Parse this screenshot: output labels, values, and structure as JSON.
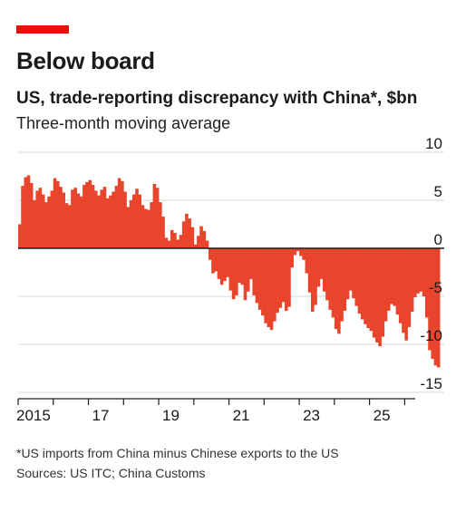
{
  "header": {
    "title": "Below board",
    "subtitle": "US, trade-reporting discrepancy with China*, $bn",
    "subsubtitle": "Three-month moving average"
  },
  "footer": {
    "footnote": "*US imports from China minus Chinese exports to the US",
    "sources": "Sources: US ITC; China Customs"
  },
  "colors": {
    "accent": "#e3120b",
    "bars": "#e8452c",
    "zero_line": "#1a1a1a",
    "grid": "#d9d9d9"
  },
  "chart_data": {
    "type": "bar",
    "title": "Below board",
    "subtitle": "US, trade-reporting discrepancy with China*, $bn",
    "xlabel": "",
    "ylabel": "",
    "ylim": [
      -15,
      10
    ],
    "yticks": [
      10,
      5,
      0,
      -5,
      -10,
      -15
    ],
    "ytick_labels": [
      "10",
      "5",
      "0",
      "-5",
      "-10",
      "-15"
    ],
    "xticks": [
      2015,
      2017,
      2019,
      2021,
      2023,
      2025
    ],
    "xtick_labels": [
      "2015",
      "17",
      "19",
      "21",
      "23",
      "25"
    ],
    "xlim": [
      2015,
      2026.3
    ],
    "grid": true,
    "series": [
      {
        "start_year": 2015,
        "months_per_step": 1,
        "values": [
          2.5,
          6.5,
          7.4,
          7.6,
          6.8,
          5.0,
          6.0,
          6.3,
          5.6,
          4.8,
          5.4,
          6.0,
          7.3,
          7.0,
          6.4,
          5.8,
          4.7,
          4.5,
          6.1,
          6.3,
          5.7,
          5.4,
          6.6,
          6.9,
          7.1,
          6.6,
          6.0,
          5.5,
          6.1,
          6.4,
          5.2,
          5.5,
          5.9,
          6.5,
          7.3,
          7.0,
          5.9,
          4.3,
          5.0,
          5.6,
          6.2,
          5.6,
          4.5,
          4.1,
          4.0,
          4.8,
          6.7,
          6.3,
          4.8,
          3.3,
          1.1,
          0.8,
          1.9,
          1.6,
          0.9,
          1.4,
          2.8,
          3.6,
          3.1,
          2.2,
          0.4,
          1.3,
          2.3,
          1.8,
          0.8,
          -1.2,
          -2.6,
          -2.4,
          -3.2,
          -3.8,
          -3.4,
          -3.0,
          -4.4,
          -5.3,
          -4.9,
          -3.6,
          -3.8,
          -5.4,
          -4.5,
          -3.2,
          -4.9,
          -5.7,
          -6.4,
          -7.0,
          -7.8,
          -8.2,
          -8.5,
          -7.6,
          -6.7,
          -6.2,
          -5.6,
          -6.5,
          -6.1,
          -2.0,
          -0.7,
          -0.3,
          -0.8,
          -1.2,
          -2.6,
          -4.6,
          -6.6,
          -5.9,
          -4.0,
          -3.2,
          -4.5,
          -5.4,
          -6.4,
          -7.2,
          -8.4,
          -8.9,
          -7.6,
          -6.5,
          -5.3,
          -4.4,
          -5.2,
          -6.0,
          -6.8,
          -7.4,
          -7.9,
          -8.3,
          -8.6,
          -9.3,
          -9.8,
          -10.2,
          -9.2,
          -7.6,
          -6.5,
          -5.8,
          -6.0,
          -6.9,
          -7.8,
          -8.8,
          -9.6,
          -8.2,
          -6.6,
          -5.1,
          -4.7,
          -4.5,
          -5.0,
          -7.2,
          -10.6,
          -11.5,
          -12.2,
          -12.4
        ]
      }
    ]
  }
}
